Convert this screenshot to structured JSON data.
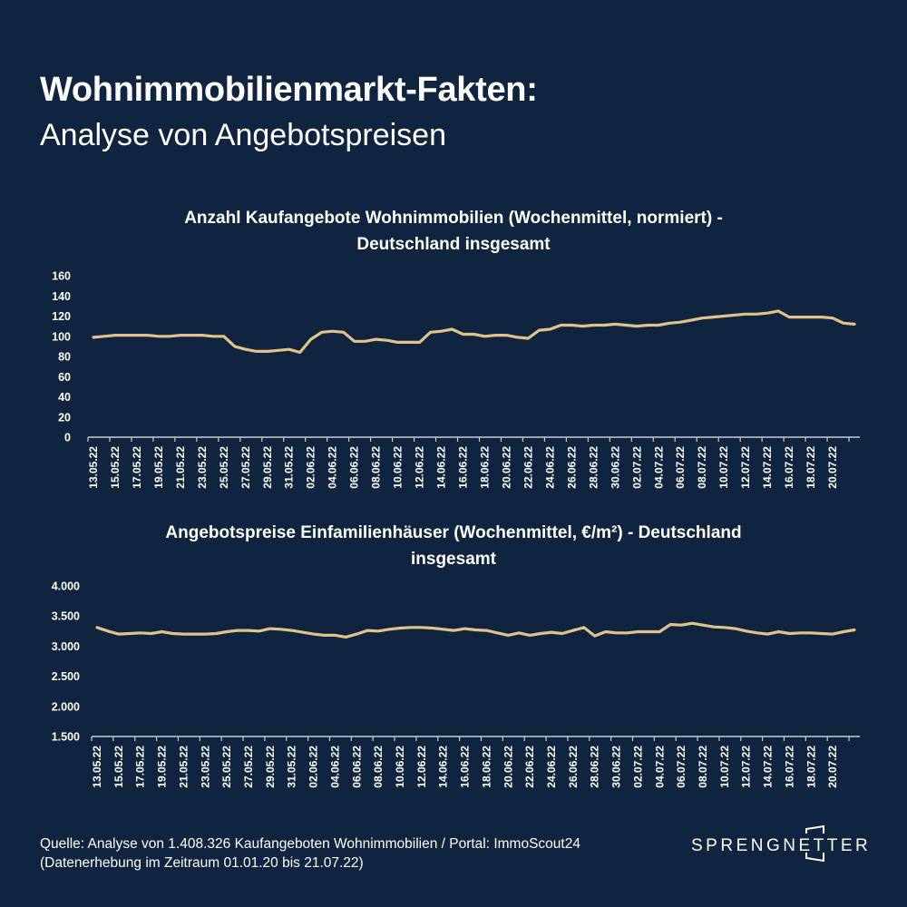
{
  "header": {
    "title": "Wohnimmobilienmarkt-Fakten:",
    "subtitle": "Analyse von Angebotspreisen"
  },
  "colors": {
    "background": "#10233f",
    "line": "#e0c38a",
    "text": "#ffffff",
    "axis": "#c8ccd4"
  },
  "chart_data": [
    {
      "type": "line",
      "title_line1": "Anzahl Kaufangebote Wohnimmobilien (Wochenmittel, normiert) -",
      "title_line2": "Deutschland insgesamt",
      "xlabel": "",
      "ylabel": "",
      "ylim": [
        0,
        160
      ],
      "yticks": [
        "0",
        "20",
        "40",
        "60",
        "80",
        "100",
        "120",
        "140",
        "160"
      ],
      "ytick_values": [
        0,
        20,
        40,
        60,
        80,
        100,
        120,
        140,
        160
      ],
      "grid": false,
      "xtick_labels": [
        "13.05.22",
        "15.05.22",
        "17.05.22",
        "19.05.22",
        "21.05.22",
        "23.05.22",
        "25.05.22",
        "27.05.22",
        "29.05.22",
        "31.05.22",
        "02.06.22",
        "04.06.22",
        "06.06.22",
        "08.06.22",
        "10.06.22",
        "12.06.22",
        "14.06.22",
        "16.06.22",
        "18.06.22",
        "20.06.22",
        "22.06.22",
        "24.06.22",
        "26.06.22",
        "28.06.22",
        "30.06.22",
        "02.07.22",
        "04.07.22",
        "06.07.22",
        "08.07.22",
        "10.07.22",
        "12.07.22",
        "14.07.22",
        "16.07.22",
        "18.07.22",
        "20.07.22"
      ],
      "x_start": "13.05.22",
      "x_end": "21.07.22",
      "series": [
        {
          "name": "Anzahl Kaufangebote",
          "values": [
            99,
            100,
            101,
            101,
            101,
            101,
            100,
            100,
            101,
            101,
            101,
            100,
            100,
            90,
            87,
            85,
            85,
            86,
            87,
            84,
            97,
            104,
            105,
            104,
            95,
            95,
            97,
            96,
            94,
            94,
            94,
            104,
            105,
            107,
            102,
            102,
            100,
            101,
            101,
            99,
            98,
            106,
            107,
            111,
            111,
            110,
            111,
            111,
            112,
            111,
            110,
            111,
            111,
            113,
            114,
            116,
            118,
            119,
            120,
            121,
            122,
            122,
            123,
            125,
            119,
            119,
            119,
            119,
            118,
            113,
            112
          ]
        }
      ]
    },
    {
      "type": "line",
      "title_line1": "Angebotspreise Einfamilienhäuser (Wochenmittel, €/m²) - Deutschland",
      "title_line2": "insgesamt",
      "xlabel": "",
      "ylabel": "",
      "ylim": [
        1500,
        4000
      ],
      "yticks": [
        "1.500",
        "2.000",
        "2.500",
        "3.000",
        "3.500",
        "4.000"
      ],
      "ytick_values": [
        1500,
        2000,
        2500,
        3000,
        3500,
        4000
      ],
      "grid": false,
      "xtick_labels": [
        "13.05.22",
        "15.05.22",
        "17.05.22",
        "19.05.22",
        "21.05.22",
        "23.05.22",
        "25.05.22",
        "27.05.22",
        "29.05.22",
        "31.05.22",
        "02.06.22",
        "04.06.22",
        "06.06.22",
        "08.06.22",
        "10.06.22",
        "12.06.22",
        "14.06.22",
        "16.06.22",
        "18.06.22",
        "20.06.22",
        "22.06.22",
        "24.06.22",
        "26.06.22",
        "28.06.22",
        "30.06.22",
        "02.07.22",
        "04.07.22",
        "06.07.22",
        "08.07.22",
        "10.07.22",
        "12.07.22",
        "14.07.22",
        "16.07.22",
        "18.07.22",
        "20.07.22"
      ],
      "x_start": "13.05.22",
      "x_end": "21.07.22",
      "series": [
        {
          "name": "Angebotspreise €/m²",
          "values": [
            3310,
            3250,
            3200,
            3210,
            3220,
            3210,
            3240,
            3210,
            3200,
            3200,
            3200,
            3210,
            3240,
            3260,
            3260,
            3250,
            3290,
            3280,
            3260,
            3230,
            3200,
            3180,
            3180,
            3150,
            3200,
            3260,
            3250,
            3280,
            3300,
            3310,
            3310,
            3300,
            3280,
            3260,
            3290,
            3270,
            3260,
            3220,
            3180,
            3220,
            3180,
            3210,
            3230,
            3210,
            3260,
            3310,
            3170,
            3240,
            3220,
            3220,
            3240,
            3240,
            3240,
            3360,
            3350,
            3380,
            3350,
            3320,
            3310,
            3290,
            3250,
            3220,
            3200,
            3240,
            3210,
            3220,
            3220,
            3210,
            3200,
            3240,
            3270
          ]
        }
      ]
    }
  ],
  "footer": {
    "source_line1": "Quelle: Analyse von 1.408.326 Kaufangeboten Wohnimmobilien / Portal: ImmoScout24",
    "source_line2": "(Datenerhebung im Zeitraum  01.01.20 bis 21.07.22)",
    "logo_text": "SPRENGNETTER"
  }
}
